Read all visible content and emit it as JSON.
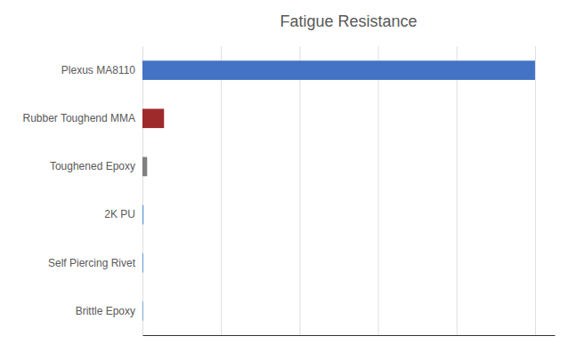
{
  "chart_data": {
    "type": "bar",
    "orientation": "horizontal",
    "title": "Fatigue Resistance",
    "categories": [
      "Brittle Epoxy",
      "Self Piercing Rivet",
      "2K PU",
      "Toughened Epoxy",
      "Rubber Toughend MMA",
      "Plexus MA8110"
    ],
    "values": [
      0.18,
      0.22,
      0.28,
      1.2,
      5.5,
      100.0
    ],
    "colors": [
      "#5b9bd5",
      "#5b9bd5",
      "#5b9bd5",
      "#808080",
      "#9e2a2b",
      "#4472c4"
    ],
    "xlim": [
      0,
      105
    ],
    "xticks": [
      0,
      20,
      40,
      60,
      80,
      100
    ],
    "grid": true,
    "tick_labels": "y"
  }
}
